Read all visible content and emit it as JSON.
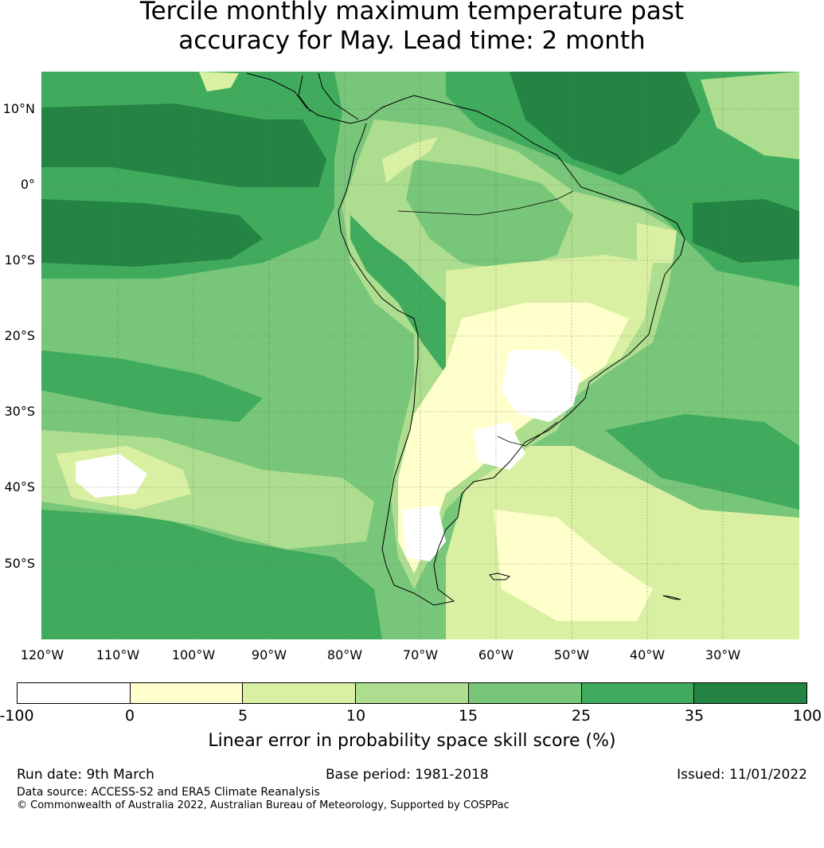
{
  "title_line1": "Tercile monthly maximum temperature past",
  "title_line2": "accuracy for May. Lead time: 2 month",
  "map": {
    "lat_labels": [
      "10°N",
      "0°",
      "10°S",
      "20°S",
      "30°S",
      "40°S",
      "50°S"
    ],
    "lon_labels": [
      "120°W",
      "110°W",
      "100°W",
      "90°W",
      "80°W",
      "70°W",
      "60°W",
      "50°W",
      "40°W",
      "30°W"
    ],
    "extent": {
      "lon": [
        -120,
        -20
      ],
      "lat": [
        -60,
        15
      ]
    }
  },
  "legend": {
    "ticks": [
      "-100",
      "0",
      "5",
      "10",
      "15",
      "25",
      "35",
      "100"
    ],
    "colors": [
      "#ffffff",
      "#ffffcc",
      "#d9f0a3",
      "#addd8e",
      "#78c679",
      "#41ab5d",
      "#238443"
    ],
    "label": "Linear error in probability space skill score (%)"
  },
  "footer": {
    "run_date": "Run date: 9th March",
    "base_period": "Base period: 1981-2018",
    "issued": "Issued: 11/01/2022",
    "data_source": "Data source: ACCESS-S2 and ERA5 Climate Reanalysis",
    "copyright": "© Commonwealth of Australia 2022, Australian Bureau of Meteorology, Supported by COSPPac"
  }
}
